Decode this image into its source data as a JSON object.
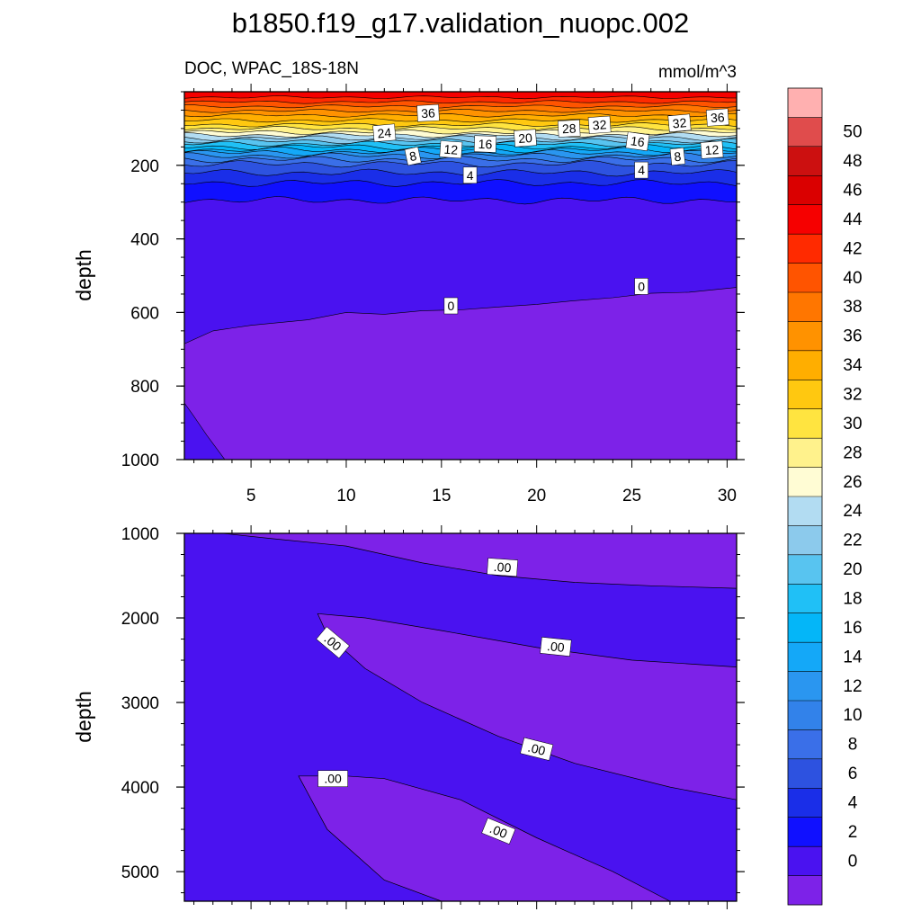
{
  "chart_data": {
    "type": "contour",
    "title": "b1850.f19_g17.validation_nuopc.002",
    "left_subtitle": "DOC, WPAC_18S-18N",
    "right_subtitle": "mmol/m^3",
    "colorbar": {
      "levels": [
        0,
        2,
        4,
        6,
        8,
        10,
        12,
        14,
        16,
        18,
        20,
        22,
        24,
        26,
        28,
        30,
        32,
        34,
        36,
        38,
        40,
        42,
        44,
        46,
        48,
        50
      ],
      "labels": [
        "0",
        "2",
        "4",
        "6",
        "8",
        "10",
        "12",
        "14",
        "16",
        "18",
        "20",
        "22",
        "24",
        "26",
        "28",
        "30",
        "32",
        "34",
        "36",
        "38",
        "40",
        "42",
        "44",
        "46",
        "48",
        "50"
      ],
      "colors": [
        "#7d22e8",
        "#4a12f0",
        "#1010ff",
        "#1a2ee8",
        "#2d52e0",
        "#3a6fe8",
        "#3282ea",
        "#2a96f0",
        "#14a8f8",
        "#04b6f8",
        "#20c0f6",
        "#58c4f0",
        "#8ccaec",
        "#b2dcf2",
        "#fffcd4",
        "#fff28c",
        "#ffe440",
        "#ffc810",
        "#ffae00",
        "#ff9200",
        "#ff7600",
        "#ff5400",
        "#ff2a00",
        "#f60000",
        "#da0000",
        "#cc1010",
        "#e04c4c",
        "#ffb0b0"
      ]
    },
    "panels": [
      {
        "name": "upper",
        "ylabel": "depth",
        "ylim": [
          1000,
          0
        ],
        "xlim": [
          1.5,
          30.5
        ],
        "yticks": [
          200,
          400,
          600,
          800,
          1000
        ],
        "ytick_labels": [
          "200",
          "400",
          "600",
          "800",
          "1000"
        ],
        "xticks": [
          5,
          10,
          15,
          20,
          25,
          30
        ],
        "xtick_labels": [
          "5",
          "10",
          "15",
          "20",
          "25",
          "30"
        ],
        "contour_labels": [
          {
            "text": "36",
            "x": 14.3,
            "y": 58
          },
          {
            "text": "24",
            "x": 12.0,
            "y": 112
          },
          {
            "text": "8",
            "x": 13.5,
            "y": 175
          },
          {
            "text": "12",
            "x": 15.5,
            "y": 157
          },
          {
            "text": "16",
            "x": 17.3,
            "y": 142
          },
          {
            "text": "20",
            "x": 19.4,
            "y": 126
          },
          {
            "text": "28",
            "x": 21.7,
            "y": 100
          },
          {
            "text": "32",
            "x": 23.3,
            "y": 90
          },
          {
            "text": "16",
            "x": 25.3,
            "y": 135
          },
          {
            "text": "32",
            "x": 27.5,
            "y": 85
          },
          {
            "text": "36",
            "x": 29.5,
            "y": 70
          },
          {
            "text": "8",
            "x": 27.4,
            "y": 176
          },
          {
            "text": "12",
            "x": 29.2,
            "y": 158
          },
          {
            "text": "4",
            "x": 16.5,
            "y": 227
          },
          {
            "text": "4",
            "x": 25.5,
            "y": 213
          },
          {
            "text": "0",
            "x": 15.5,
            "y": 582
          },
          {
            "text": "0",
            "x": 25.5,
            "y": 529
          }
        ]
      },
      {
        "name": "lower",
        "ylabel": "depth",
        "ylim": [
          5350,
          1000
        ],
        "xlim": [
          1.5,
          30.5
        ],
        "yticks": [
          1000,
          2000,
          3000,
          4000,
          5000
        ],
        "ytick_labels": [
          "1000",
          "2000",
          "3000",
          "4000",
          "5000"
        ],
        "contour_labels": [
          {
            "text": ".00",
            "x": 18.2,
            "y": 1400
          },
          {
            "text": ".00",
            "x": 9.3,
            "y": 2290
          },
          {
            "text": ".00",
            "x": 21.0,
            "y": 2340
          },
          {
            "text": ".00",
            "x": 20.0,
            "y": 3550
          },
          {
            "text": ".00",
            "x": 9.3,
            "y": 3900
          },
          {
            "text": ".00",
            "x": 18.0,
            "y": 4520
          }
        ]
      }
    ]
  }
}
